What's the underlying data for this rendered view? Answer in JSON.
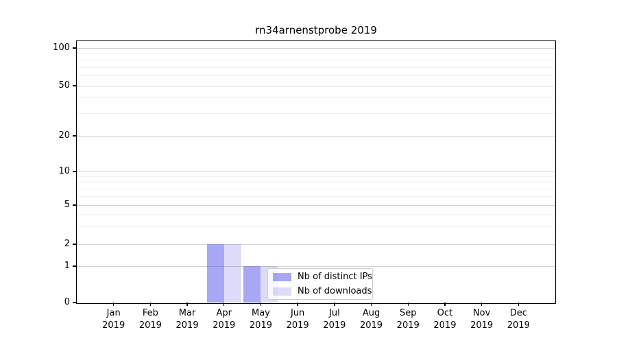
{
  "figure": {
    "background": "#ffffff"
  },
  "chart_data": {
    "type": "bar",
    "title": "rn34arnenstprobe 2019",
    "categories": [
      "Jan",
      "Feb",
      "Mar",
      "Apr",
      "May",
      "Jun",
      "Jul",
      "Aug",
      "Sep",
      "Oct",
      "Nov",
      "Dec"
    ],
    "category_year": "2019",
    "series": [
      {
        "name": "Nb of distinct IPs",
        "fill": "rgba(60,60,230,0.45)",
        "values": [
          0,
          0,
          0,
          2,
          1,
          0,
          0,
          0,
          0,
          0,
          0,
          0
        ]
      },
      {
        "name": "Nb of downloads",
        "fill": "rgba(60,60,230,0.18)",
        "values": [
          0,
          0,
          0,
          2,
          1,
          0,
          0,
          0,
          0,
          0,
          0,
          0
        ]
      }
    ],
    "xlabel": "",
    "ylabel": "",
    "yscale": "symlog",
    "ylim": [
      0,
      115
    ],
    "y_major_ticks": [
      0,
      1,
      2,
      5,
      10,
      20,
      50,
      100
    ],
    "y_minor_ticks": [
      3,
      4,
      6,
      7,
      8,
      9,
      30,
      40,
      60,
      70,
      80,
      90
    ],
    "grid": "horizontal major+minor",
    "legend_position": "lower center-right inside plot"
  },
  "legend": {
    "items": [
      {
        "label": "Nb of distinct IPs",
        "swatch": "rgba(60,60,230,0.45)"
      },
      {
        "label": "Nb of downloads",
        "swatch": "rgba(60,60,230,0.18)"
      }
    ]
  },
  "colors": {
    "major_grid": "#d2d2d2",
    "minor_grid": "#f1f1f1",
    "spine": "#000000",
    "bar_dark_on_white": "#a7a7f0",
    "bar_light_on_white": "#dcdcf8"
  }
}
